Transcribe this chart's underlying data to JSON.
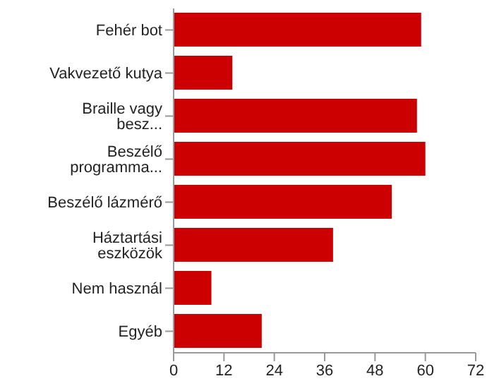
{
  "chart_data": {
    "type": "bar",
    "orientation": "horizontal",
    "categories": [
      "Fehér bot",
      "Vakvezető kutya",
      "Braille vagy besz...",
      "Beszélő programma...",
      "Beszélő lázmérő",
      "Háztartási eszközök",
      "Nem használ",
      "Egyéb"
    ],
    "values": [
      59,
      14,
      58,
      60,
      52,
      38,
      9,
      21
    ],
    "color": "#cc0000",
    "xlim": [
      0,
      72
    ],
    "xticks": [
      0,
      12,
      24,
      36,
      48,
      60,
      72
    ],
    "grid": false,
    "legend": false
  }
}
